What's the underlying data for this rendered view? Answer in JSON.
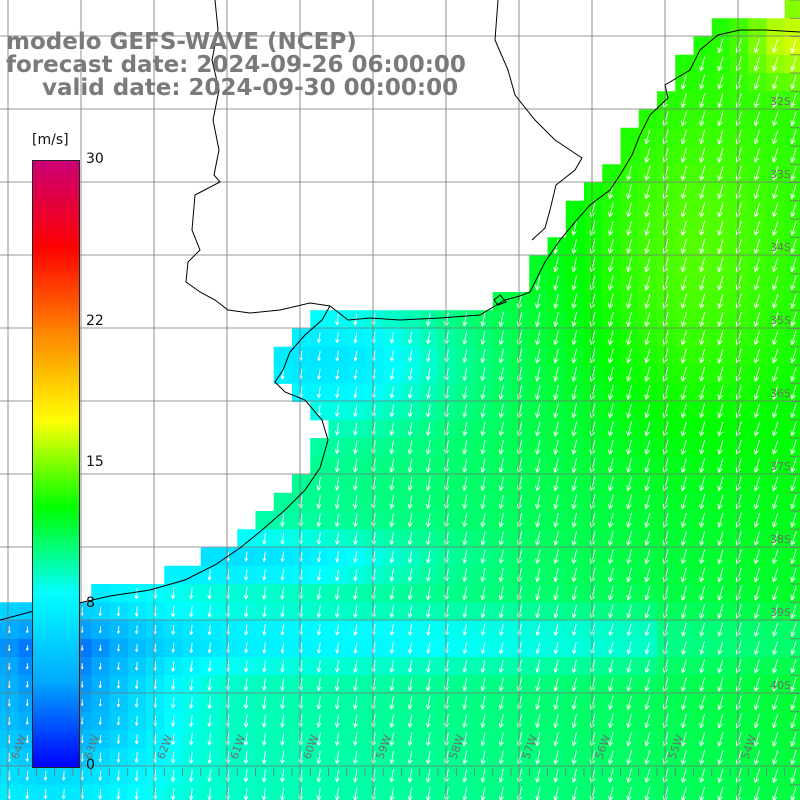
{
  "title": {
    "line1": "modelo GEFS-WAVE (NCEP)",
    "line2": "forecast date: 2024-09-26 06:00:00",
    "line3": "valid date: 2024-09-30 00:00:00"
  },
  "colorbar": {
    "unit": "[m/s]",
    "ticks": [
      "30",
      "22",
      "15",
      "8",
      "0"
    ],
    "tick_values": [
      30,
      22,
      15,
      8,
      0
    ],
    "range": [
      0,
      30
    ],
    "stops": [
      "#0000ff",
      "#00aaff",
      "#00ffff",
      "#00ff00",
      "#ffff00",
      "#ff8800",
      "#ff0000",
      "#cc0077"
    ]
  },
  "map": {
    "field": "wind speed",
    "land_color": "#ffffff",
    "coast_color": "#000000",
    "grid_color": "#777777",
    "vector_color": "#ffffff",
    "lat_labels": [
      "32S",
      "33S",
      "34S",
      "35S",
      "36S",
      "37S",
      "38S",
      "39S",
      "40S"
    ],
    "lon_labels": [
      "64W",
      "63W",
      "62W",
      "61W",
      "60W",
      "59W",
      "58W",
      "57W",
      "56W",
      "55W",
      "54W"
    ]
  }
}
